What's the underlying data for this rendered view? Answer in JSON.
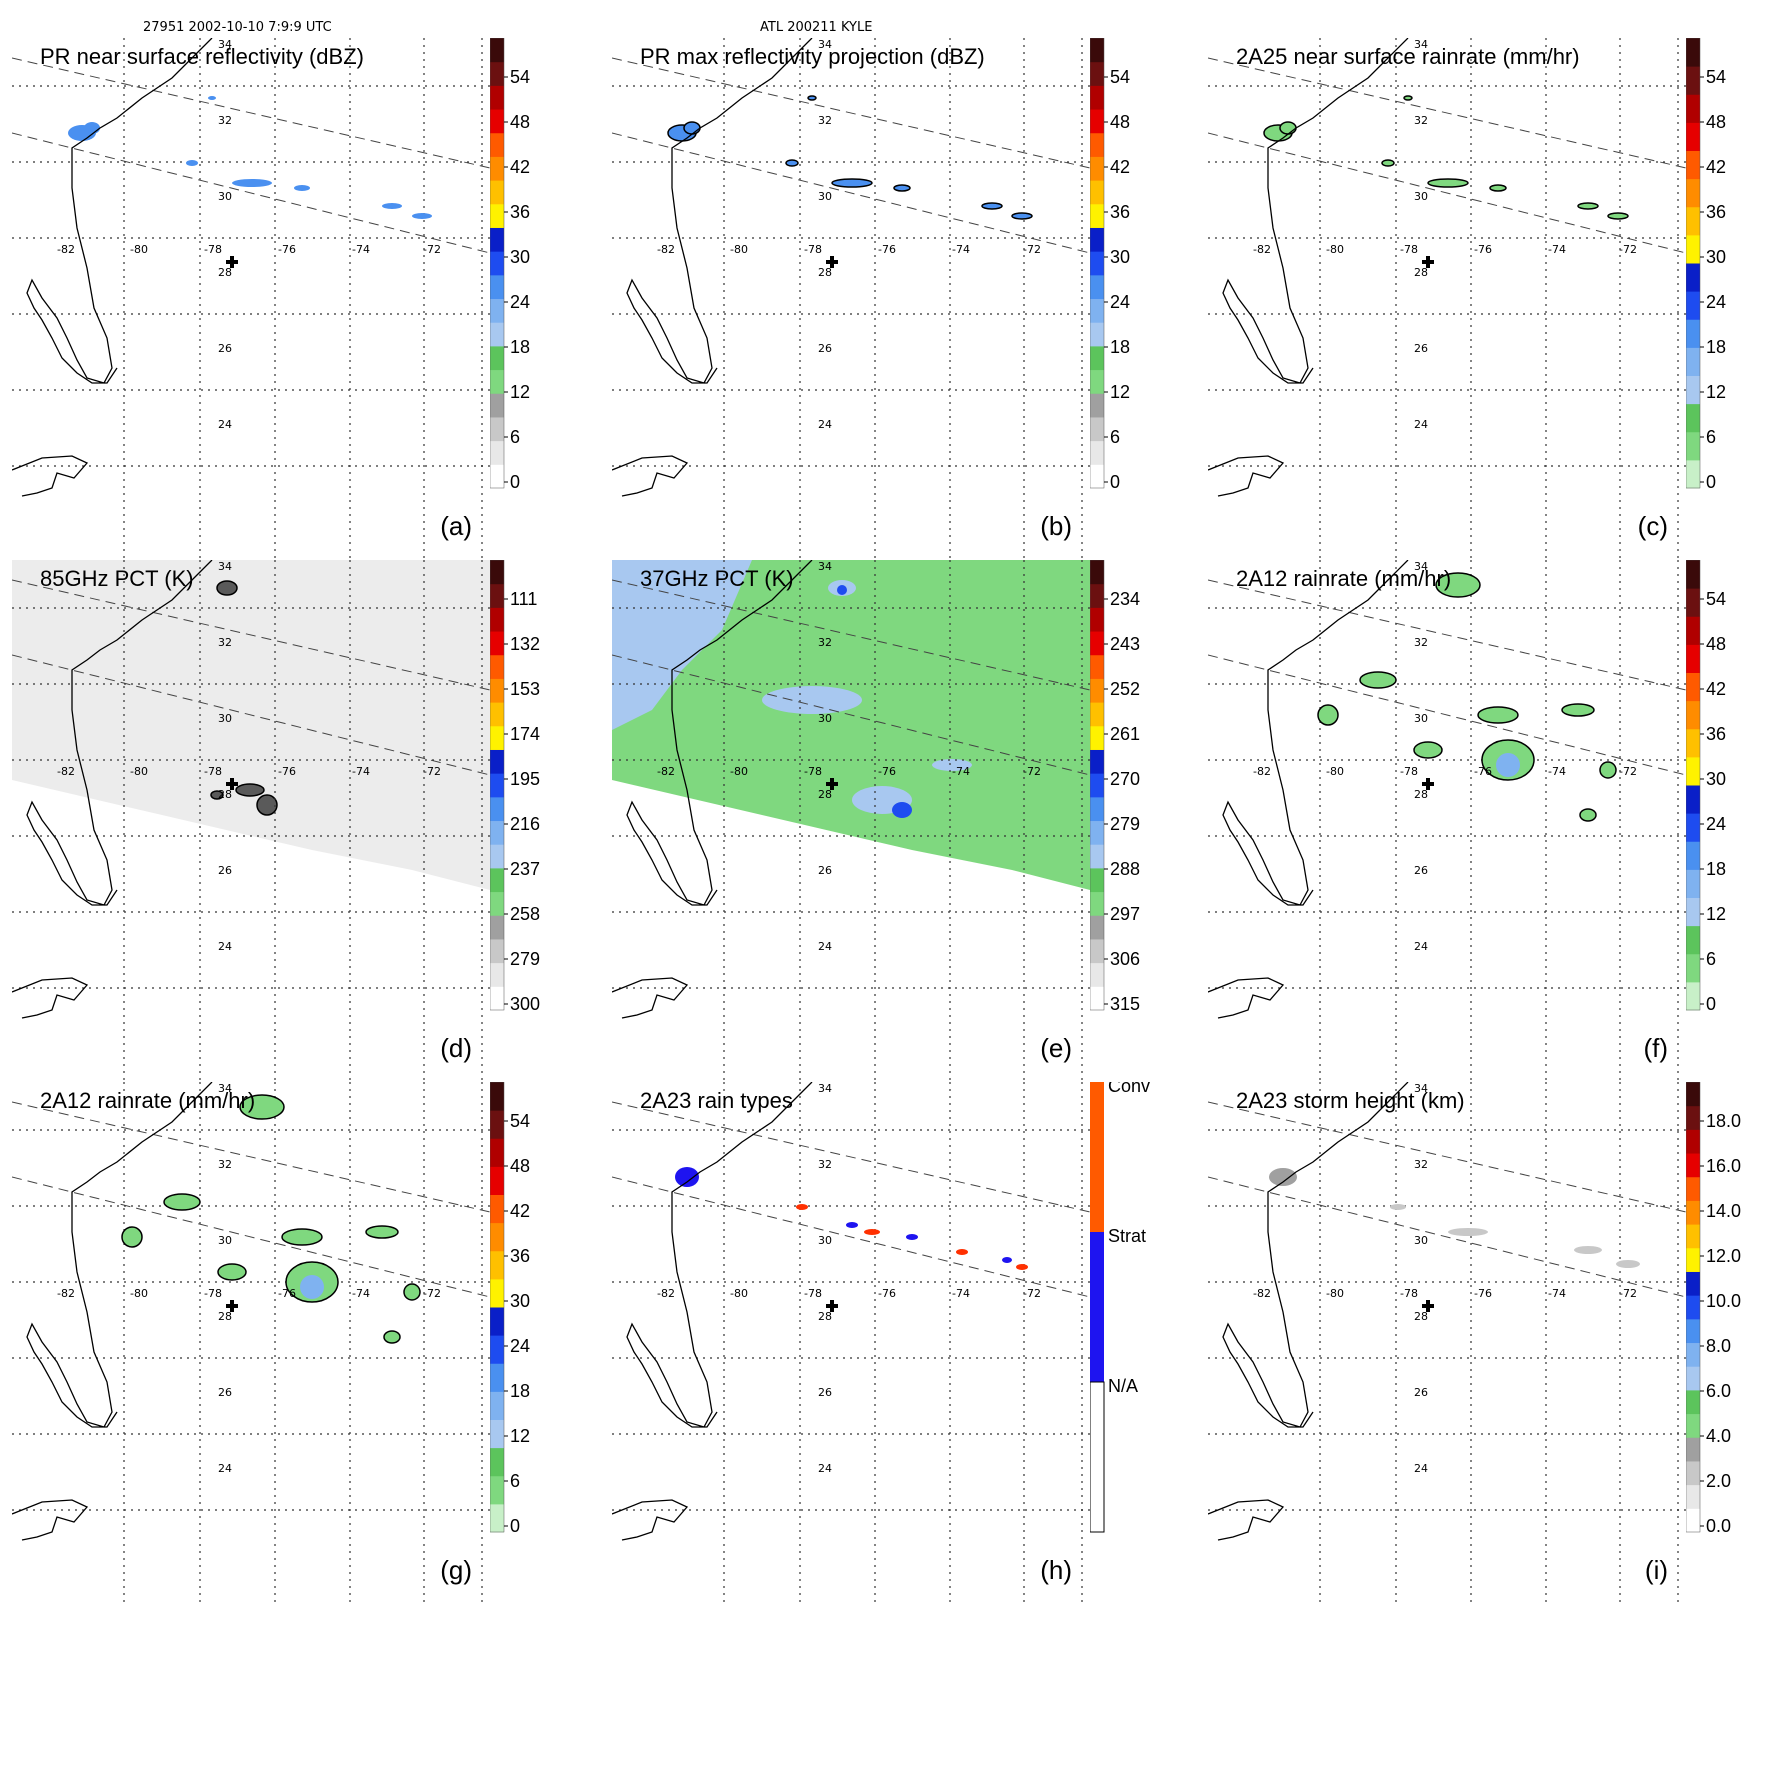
{
  "header": {
    "left": "27951 2002-10-10 7:9:9 UTC",
    "center": "ATL 200211 KYLE"
  },
  "lat_labels": [
    "34",
    "32",
    "30",
    "28",
    "26",
    "24"
  ],
  "lon_labels": [
    "-82",
    "-80",
    "-78",
    "-76",
    "-74",
    "-72"
  ],
  "colors": {
    "green": "#7fd87f",
    "light_blue": "#a8c8f0",
    "blue": "#1e4cf0",
    "yellow": "#fff200",
    "orange": "#ff8c00",
    "red": "#e60000",
    "dark_red": "#6b1010"
  },
  "panels": [
    {
      "id": "a",
      "title": "PR near surface reflectivity (dBZ)",
      "label": "(a)",
      "colorbar": "dbz",
      "ticks": [
        "54",
        "48",
        "42",
        "36",
        "30",
        "24",
        "18",
        "12",
        "6",
        "0"
      ]
    },
    {
      "id": "b",
      "title": "PR max reflectivity projection (dBZ)",
      "label": "(b)",
      "colorbar": "dbz",
      "ticks": [
        "54",
        "48",
        "42",
        "36",
        "30",
        "24",
        "18",
        "12",
        "6",
        "0"
      ]
    },
    {
      "id": "c",
      "title": "2A25 near surface rainrate (mm/hr)",
      "label": "(c)",
      "colorbar": "rain",
      "ticks": [
        "54",
        "48",
        "42",
        "36",
        "30",
        "24",
        "18",
        "12",
        "6",
        "0"
      ]
    },
    {
      "id": "d",
      "title": "85GHz PCT (K)",
      "label": "(d)",
      "colorbar": "pct",
      "ticks": [
        "111",
        "132",
        "153",
        "174",
        "195",
        "216",
        "237",
        "258",
        "279",
        "300"
      ]
    },
    {
      "id": "e",
      "title": "37GHz PCT (K)",
      "label": "(e)",
      "colorbar": "pct",
      "ticks": [
        "234",
        "243",
        "252",
        "261",
        "270",
        "279",
        "288",
        "297",
        "306",
        "315"
      ]
    },
    {
      "id": "f",
      "title": "2A12 rainrate (mm/hr)",
      "label": "(f)",
      "colorbar": "rain",
      "ticks": [
        "54",
        "48",
        "42",
        "36",
        "30",
        "24",
        "18",
        "12",
        "6",
        "0"
      ]
    },
    {
      "id": "g",
      "title": "2A12 rainrate (mm/hr)",
      "label": "(g)",
      "colorbar": "rain",
      "ticks": [
        "54",
        "48",
        "42",
        "36",
        "30",
        "24",
        "18",
        "12",
        "6",
        "0"
      ]
    },
    {
      "id": "h",
      "title": "2A23 rain types",
      "label": "(h)",
      "colorbar": "types",
      "ticks": [
        "Conv",
        "Strat",
        "N/A"
      ]
    },
    {
      "id": "i",
      "title": "2A23 storm height (km)",
      "label": "(i)",
      "colorbar": "height",
      "ticks": [
        "18.0",
        "16.0",
        "14.0",
        "12.0",
        "10.0",
        "8.0",
        "6.0",
        "4.0",
        "2.0",
        "0.0"
      ]
    }
  ]
}
